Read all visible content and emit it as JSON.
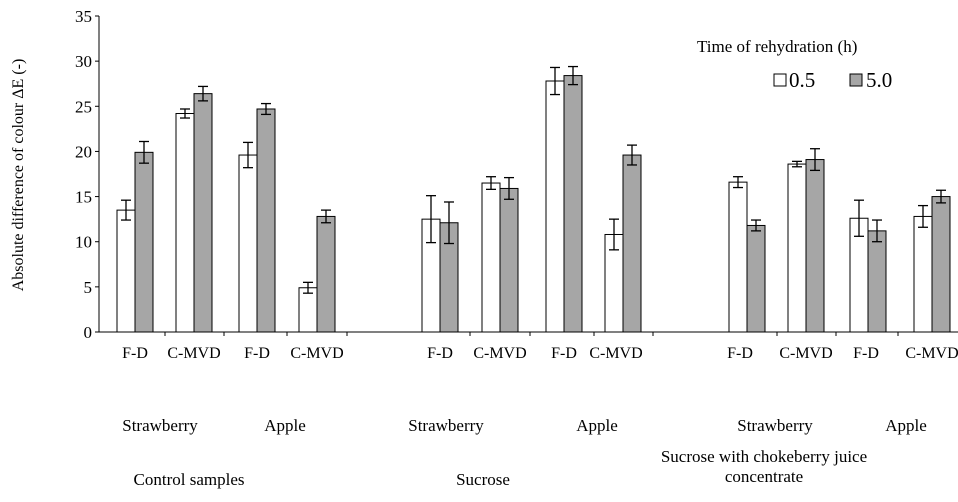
{
  "chart_data": {
    "type": "bar",
    "ylabel": "Absolute difference of colour  ΔE  (-)",
    "ylim": [
      0,
      35
    ],
    "yticks": [
      0,
      5,
      10,
      15,
      20,
      25,
      30,
      35
    ],
    "grid": false,
    "legend": {
      "title": "Time of rehydration (h)",
      "position": "top-right",
      "items": [
        "0.5",
        "5.0"
      ]
    },
    "series": [
      {
        "name": "0.5",
        "color": "#ffffff"
      },
      {
        "name": "5.0",
        "color": "#a6a6a6"
      }
    ],
    "categories": [
      "F-D",
      "C-MVD",
      "F-D",
      "C-MVD",
      "F-D",
      "C-MVD",
      "F-D",
      "C-MVD",
      "F-D",
      "C-MVD",
      "F-D",
      "C-MVD"
    ],
    "groups": [
      {
        "label": [
          "Control samples"
        ],
        "subgroups": [
          {
            "label": "Strawberry",
            "categories": [
              {
                "name": "F-D",
                "values": [
                  13.5,
                  19.9
                ],
                "errors": [
                  1.1,
                  1.2
                ]
              },
              {
                "name": "C-MVD",
                "values": [
                  24.2,
                  26.4
                ],
                "errors": [
                  0.5,
                  0.8
                ]
              }
            ]
          },
          {
            "label": "Apple",
            "categories": [
              {
                "name": "F-D",
                "values": [
                  19.6,
                  24.7
                ],
                "errors": [
                  1.4,
                  0.6
                ]
              },
              {
                "name": "C-MVD",
                "values": [
                  4.9,
                  12.8
                ],
                "errors": [
                  0.6,
                  0.7
                ]
              }
            ]
          }
        ]
      },
      {
        "label": [
          "Sucrose"
        ],
        "subgroups": [
          {
            "label": "Strawberry",
            "categories": [
              {
                "name": "F-D",
                "values": [
                  12.5,
                  12.1
                ],
                "errors": [
                  2.6,
                  2.3
                ]
              },
              {
                "name": "C-MVD",
                "values": [
                  16.5,
                  15.9
                ],
                "errors": [
                  0.7,
                  1.2
                ]
              }
            ]
          },
          {
            "label": "Apple",
            "categories": [
              {
                "name": "F-D",
                "values": [
                  27.8,
                  28.4
                ],
                "errors": [
                  1.5,
                  1.0
                ]
              },
              {
                "name": "C-MVD",
                "values": [
                  10.8,
                  19.6
                ],
                "errors": [
                  1.7,
                  1.1
                ]
              }
            ]
          }
        ]
      },
      {
        "label": [
          "Sucrose  with chokeberry juice",
          "concentrate"
        ],
        "subgroups": [
          {
            "label": "Strawberry",
            "categories": [
              {
                "name": "F-D",
                "values": [
                  16.6,
                  11.8
                ],
                "errors": [
                  0.6,
                  0.6
                ]
              },
              {
                "name": "C-MVD",
                "values": [
                  18.6,
                  19.1
                ],
                "errors": [
                  0.3,
                  1.2
                ]
              }
            ]
          },
          {
            "label": "Apple",
            "categories": [
              {
                "name": "F-D",
                "values": [
                  12.6,
                  11.2
                ],
                "errors": [
                  2.0,
                  1.2
                ]
              },
              {
                "name": "C-MVD",
                "values": [
                  12.8,
                  15.0
                ],
                "errors": [
                  1.2,
                  0.7
                ]
              }
            ]
          }
        ]
      }
    ]
  }
}
